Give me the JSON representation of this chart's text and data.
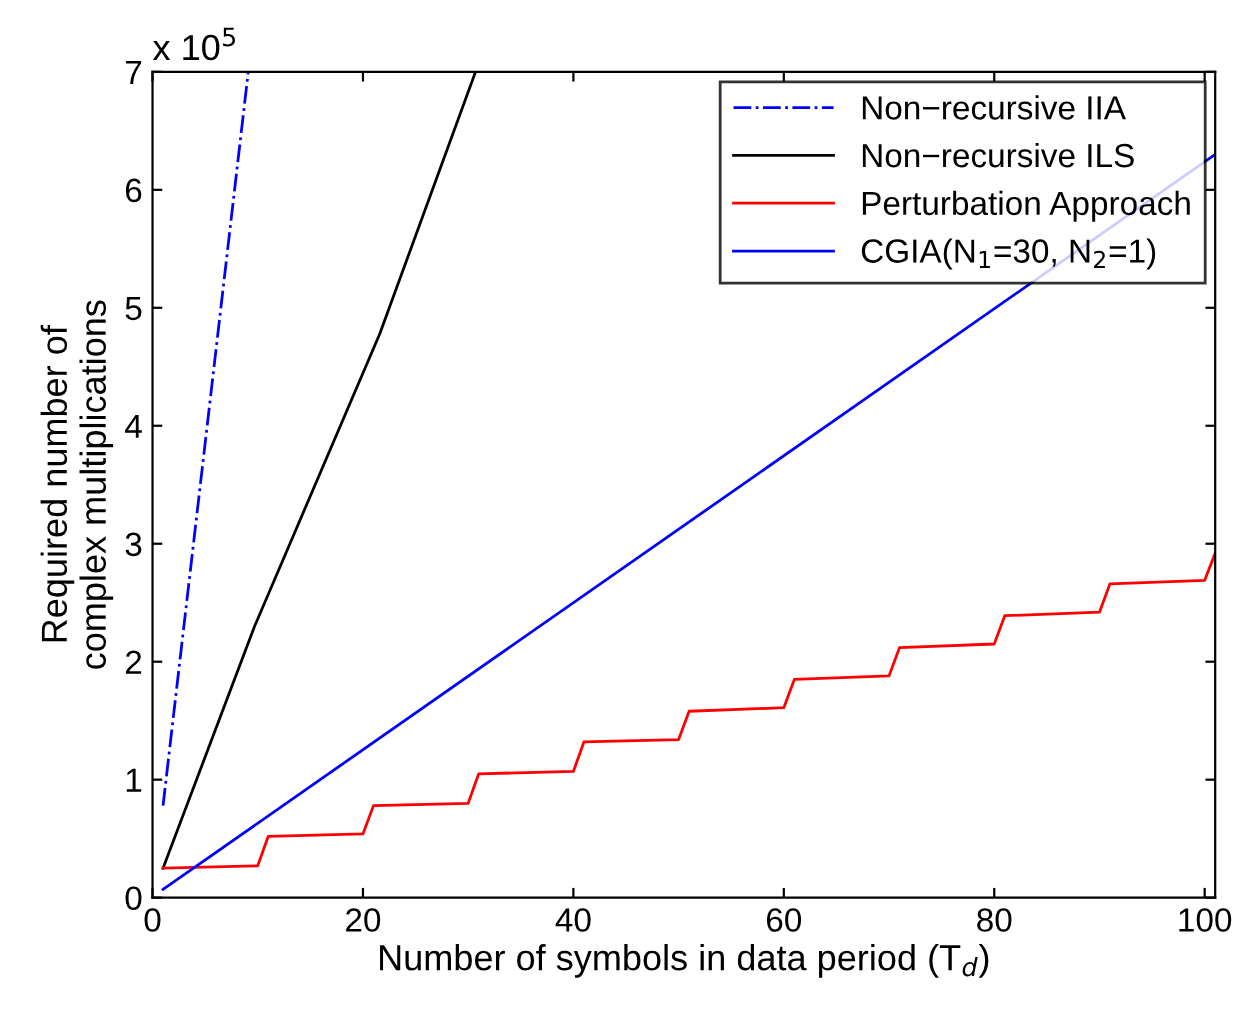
{
  "chart_data": {
    "type": "line",
    "xlabel": "Number of symbols in data period (T$_{d}$)",
    "ylabel": "Required number of\ncomplex multiplications",
    "annotations": [
      "x 10$^{5}$"
    ],
    "series": [
      {
        "name": "Non−recursive IIA",
        "color": "#0000ff",
        "line_style": "dashdot",
        "x": [
          1,
          5,
          9.1
        ],
        "values": [
          0.78,
          3.85,
          7.0
        ]
      },
      {
        "name": "Non−recursive ILS",
        "color": "#000000",
        "x": [
          1,
          9.7,
          21.6,
          30.7
        ],
        "values": [
          0.25,
          2.3,
          4.78,
          7.0
        ]
      },
      {
        "name": "Perturbation Approach",
        "color": "#ff0000",
        "x": [
          1,
          10,
          11,
          20,
          21,
          30,
          31,
          40,
          41,
          50,
          51,
          60,
          61,
          70,
          71,
          80,
          81,
          90,
          91,
          100,
          101
        ],
        "values": [
          0.25,
          0.27,
          0.52,
          0.54,
          0.78,
          0.8,
          1.05,
          1.07,
          1.32,
          1.34,
          1.58,
          1.61,
          1.85,
          1.88,
          2.12,
          2.15,
          2.39,
          2.42,
          2.66,
          2.69,
          2.92
        ]
      },
      {
        "name": "CGIA(N$_{1}$=30, N$_{2}$=1)",
        "color": "#0000ff",
        "x": [
          1,
          101
        ],
        "values": [
          0.07,
          6.3
        ]
      }
    ],
    "xlim": [
      0,
      101
    ],
    "ylim": [
      0,
      7
    ],
    "xticks": [
      0,
      20,
      40,
      60,
      80,
      100
    ],
    "yticks": [
      0,
      1,
      2,
      3,
      4,
      5,
      6,
      7
    ],
    "grid": false,
    "legend": "top right",
    "marker": "none"
  }
}
